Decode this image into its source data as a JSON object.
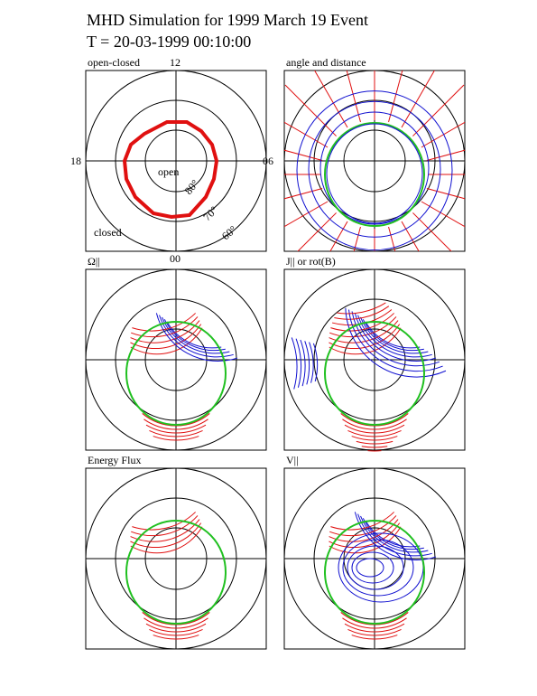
{
  "header": {
    "title": "MHD Simulation for 1999 March 19 Event",
    "time": "T = 20-03-1999  00:10:00"
  },
  "panels": [
    {
      "label": "open-closed",
      "top": "12",
      "left": "18",
      "right": "06",
      "bottom": "00",
      "annotations": [
        "open",
        "closed",
        "80°",
        "70°",
        "60°"
      ]
    },
    {
      "label": "angle and distance"
    },
    {
      "label": "Ω||"
    },
    {
      "label": "J|| or rot(B)"
    },
    {
      "label": "Energy Flux"
    },
    {
      "label": "V||"
    }
  ]
}
